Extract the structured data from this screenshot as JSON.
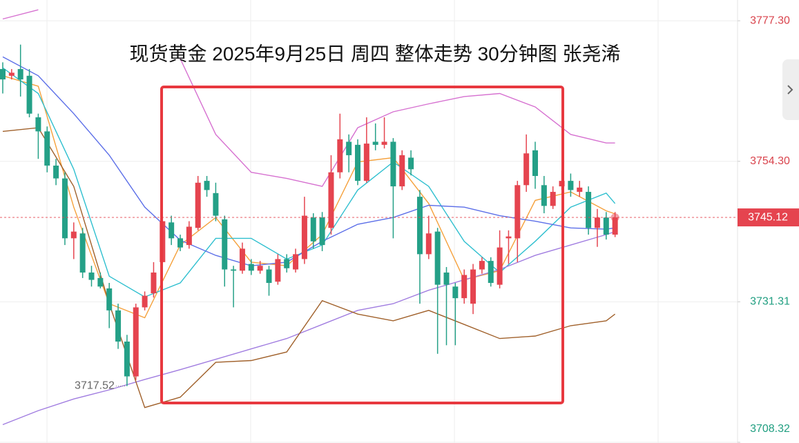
{
  "chart_data": {
    "type": "candlestick",
    "title": "现货黄金 2025年9月25日 周四 整体走势 30分钟图 张尧浠",
    "open": [
      3769.4,
      3768.3,
      3769.4,
      3768.3,
      3761.5,
      3759.2,
      3753.6,
      3751.5,
      3741.7,
      3742.5,
      3736.1,
      3735.2,
      3733.5,
      3729.9,
      3724.8,
      3719.1,
      3730.4,
      3732.7,
      3737.8,
      3744.3,
      3741.7,
      3740.6,
      3743.4,
      3751.1,
      3749.1,
      3744.8,
      3736.6,
      3736.4,
      3737.5,
      3736.4,
      3736.6,
      3734.6,
      3738.3,
      3736.6,
      3738.3,
      3745.1,
      3745.1,
      3743.4,
      3752.5,
      3757.5,
      3757.0,
      3751.1,
      3757.5,
      3757.0,
      3757.5,
      3750.2,
      3754.9,
      3748.5,
      3739.1,
      3742.8,
      3736.1,
      3733.8,
      3731.9,
      3731.0,
      3736.6,
      3738.0,
      3734.1,
      3741.7,
      3741.7,
      3750.4,
      3756.1,
      3750.4,
      3747.0,
      3750.2,
      3751.1,
      3749.3,
      3749.3,
      3743.4,
      3745.1,
      3742.3
    ],
    "high": [
      3770.5,
      3769.4,
      3773.4,
      3769.4,
      3762.1,
      3760.0,
      3754.7,
      3752.5,
      3744.3,
      3743.4,
      3737.2,
      3736.1,
      3734.4,
      3731.0,
      3725.9,
      3731.0,
      3733.0,
      3737.8,
      3745.1,
      3745.4,
      3742.3,
      3744.5,
      3751.9,
      3751.9,
      3750.8,
      3745.4,
      3737.2,
      3741.0,
      3738.3,
      3738.0,
      3737.2,
      3739.1,
      3739.1,
      3740.0,
      3748.5,
      3745.8,
      3746.0,
      3755.3,
      3762.1,
      3758.7,
      3757.9,
      3761.5,
      3760.5,
      3761.5,
      3758.1,
      3756.1,
      3756.1,
      3749.6,
      3745.4,
      3743.4,
      3737.0,
      3734.4,
      3736.6,
      3737.5,
      3738.6,
      3738.6,
      3743.0,
      3743.0,
      3751.1,
      3758.7,
      3757.5,
      3751.9,
      3750.2,
      3752.8,
      3752.3,
      3751.1,
      3750.2,
      3746.5,
      3746.0,
      3746.0
    ],
    "low": [
      3765.4,
      3767.7,
      3764.9,
      3761.5,
      3754.7,
      3752.5,
      3750.4,
      3740.6,
      3738.3,
      3735.2,
      3733.8,
      3733.5,
      3727.0,
      3723.6,
      3717.52,
      3718.5,
      3729.9,
      3732.0,
      3737.5,
      3740.6,
      3739.6,
      3740.0,
      3743.0,
      3748.5,
      3744.5,
      3733.8,
      3730.4,
      3735.9,
      3735.7,
      3735.9,
      3732.3,
      3734.1,
      3736.1,
      3736.1,
      3737.5,
      3740.0,
      3739.6,
      3742.3,
      3751.5,
      3752.5,
      3750.4,
      3750.8,
      3756.1,
      3756.4,
      3741.7,
      3749.6,
      3752.0,
      3731.0,
      3738.3,
      3722.8,
      3724.2,
      3724.2,
      3731.0,
      3729.3,
      3735.9,
      3733.8,
      3733.5,
      3737.5,
      3737.8,
      3749.3,
      3749.8,
      3745.8,
      3746.5,
      3749.6,
      3748.5,
      3748.5,
      3742.3,
      3740.3,
      3741.5,
      3741.9
    ],
    "close": [
      3767.7,
      3768.8,
      3767.7,
      3762.1,
      3759.2,
      3753.6,
      3751.5,
      3741.7,
      3742.8,
      3736.1,
      3734.9,
      3733.8,
      3729.9,
      3724.8,
      3719.1,
      3730.4,
      3732.3,
      3736.1,
      3744.5,
      3741.7,
      3740.2,
      3743.6,
      3750.8,
      3749.6,
      3745.4,
      3736.6,
      3736.4,
      3740.0,
      3736.4,
      3737.2,
      3734.4,
      3738.3,
      3736.8,
      3739.1,
      3745.4,
      3741.2,
      3740.6,
      3752.5,
      3757.9,
      3755.3,
      3751.1,
      3757.2,
      3757.0,
      3757.5,
      3750.2,
      3755.3,
      3753.0,
      3739.1,
      3742.5,
      3734.1,
      3734.1,
      3731.9,
      3735.7,
      3736.6,
      3738.0,
      3734.4,
      3740.2,
      3742.0,
      3750.4,
      3755.6,
      3751.9,
      3747.0,
      3749.3,
      3751.1,
      3749.6,
      3750.0,
      3743.4,
      3745.1,
      3742.3,
      3745.12
    ],
    "up_color": "#e5444f",
    "down_color": "#24a087",
    "lines": [
      {
        "color": "#f5a03a",
        "x": [
          0,
          4,
          8,
          12,
          16,
          20,
          24,
          28,
          32,
          36,
          40,
          44,
          48,
          52,
          56,
          60,
          64,
          68,
          69
        ],
        "values": [
          3768.3,
          3766.6,
          3746.8,
          3731.0,
          3728.7,
          3740.6,
          3745.1,
          3737.8,
          3737.2,
          3742.3,
          3754.2,
          3754.9,
          3747.4,
          3734.9,
          3736.4,
          3747.9,
          3749.3,
          3746.2,
          3745.7
        ]
      },
      {
        "color": "#2ebfcf",
        "x": [
          0,
          4,
          8,
          12,
          16,
          20,
          24,
          28,
          32,
          36,
          40,
          44,
          48,
          52,
          56,
          60,
          64,
          68,
          69
        ],
        "values": [
          3769.6,
          3765.4,
          3753.0,
          3735.5,
          3732.1,
          3734.4,
          3741.7,
          3741.7,
          3738.3,
          3740.6,
          3749.6,
          3754.2,
          3750.2,
          3741.2,
          3736.1,
          3741.2,
          3746.8,
          3749.1,
          3747.4
        ]
      },
      {
        "color": "#5b6ee8",
        "x": [
          0,
          4,
          8,
          12,
          16,
          20,
          24,
          28,
          32,
          36,
          40,
          44,
          48,
          52,
          56,
          60,
          64,
          68,
          69
        ],
        "values": [
          3771.4,
          3768.3,
          3762.1,
          3755.3,
          3746.8,
          3741.4,
          3738.9,
          3737.2,
          3737.8,
          3741.2,
          3744.0,
          3745.1,
          3747.1,
          3746.8,
          3745.4,
          3744.5,
          3743.4,
          3743.2,
          3743.4
        ]
      },
      {
        "color": "#a07ce0",
        "x": [
          0,
          4,
          8,
          12,
          16,
          20,
          24,
          28,
          32,
          36,
          40,
          44,
          48,
          52,
          56,
          60,
          64,
          68,
          69
        ],
        "values": [
          3711.2,
          3713.5,
          3715.4,
          3716.9,
          3718.6,
          3720.2,
          3721.9,
          3723.6,
          3725.3,
          3727.6,
          3729.9,
          3731.0,
          3733.2,
          3734.9,
          3736.6,
          3738.9,
          3740.6,
          3742.3,
          3742.8
        ]
      },
      {
        "color": "#a0602a",
        "x": [
          0,
          4,
          8,
          12,
          16,
          20,
          24,
          28,
          32,
          36,
          40,
          44,
          48,
          52,
          56,
          60,
          64,
          68,
          69
        ],
        "values": [
          3759.2,
          3759.8,
          3750.2,
          3731.0,
          3714.0,
          3715.7,
          3721.4,
          3721.7,
          3723.1,
          3731.5,
          3729.3,
          3728.2,
          3729.9,
          3727.6,
          3725.3,
          3725.7,
          3727.4,
          3728.2,
          3729.3
        ]
      },
      {
        "color": "#d670d0",
        "x": [
          0,
          4,
          8,
          12,
          16,
          20,
          24,
          28,
          32,
          36,
          40,
          44,
          48,
          52,
          56,
          60,
          64,
          68,
          69
        ],
        "values": [
          3777.6,
          3779.1,
          null,
          null,
          null,
          3771.1,
          3758.7,
          3752.5,
          3751.5,
          3750.2,
          3759.8,
          3762.4,
          3763.7,
          3764.9,
          3765.4,
          3763.2,
          3758.7,
          3757.3,
          3757.3
        ]
      }
    ],
    "current_price": 3745.12,
    "ylim": [
      3708.2,
      3780.7
    ],
    "yticks": [
      {
        "value": 3777.3,
        "label": "3777.30"
      },
      {
        "value": 3754.3,
        "label": "3754.30"
      },
      3731.31,
      3708.32
    ],
    "grid": true
  }
}
